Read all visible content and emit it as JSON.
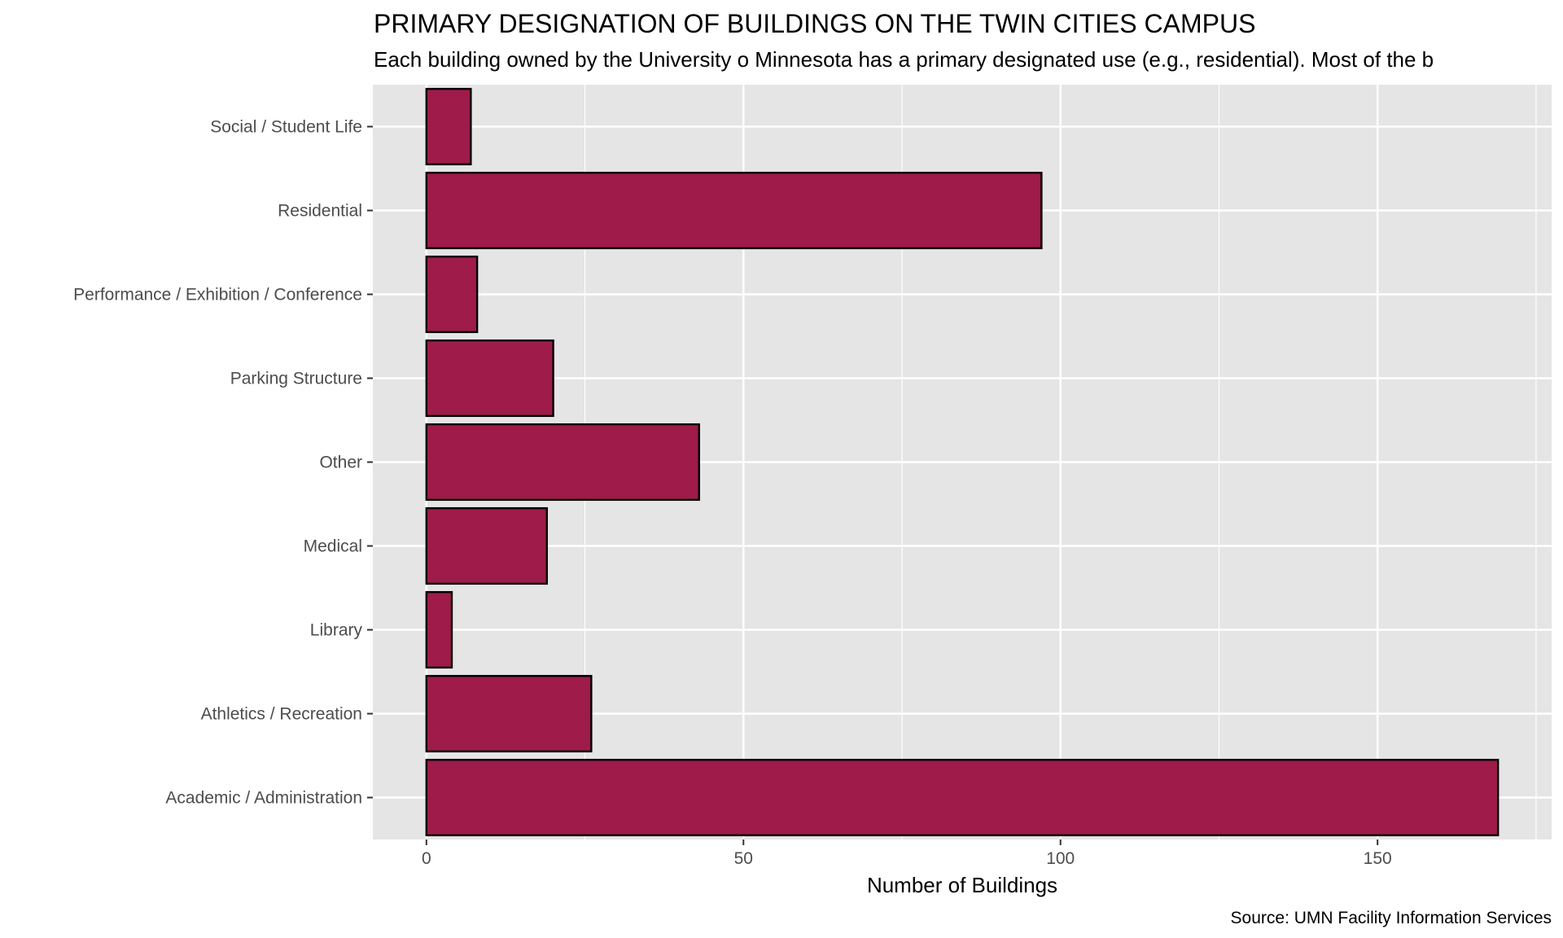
{
  "chart_data": {
    "type": "bar",
    "orientation": "horizontal",
    "title": "PRIMARY DESIGNATION OF BUILDINGS ON THE TWIN CITIES CAMPUS",
    "subtitle": "Each building owned by the University o Minnesota has a primary designated use (e.g., residential). Most of the b",
    "xlabel": "Number of Buildings",
    "ylabel": "",
    "caption": "Source: UMN Facility Information Services",
    "categories": [
      "Academic / Administration",
      "Athletics / Recreation",
      "Library",
      "Medical",
      "Other",
      "Parking Structure",
      "Performance / Exhibition / Conference",
      "Residential",
      "Social / Student Life"
    ],
    "values": [
      169,
      26,
      4,
      19,
      43,
      20,
      8,
      97,
      7
    ],
    "xlim": [
      -8.45,
      177.45
    ],
    "xticks": [
      0,
      50,
      100,
      150
    ],
    "xtick_labels": [
      "0",
      "50",
      "100",
      "150"
    ],
    "grid": true,
    "colors": {
      "bar_fill": "#9E1B4A",
      "bar_stroke": "#000000",
      "panel": "#E5E5E5",
      "grid": "#FFFFFF"
    }
  }
}
